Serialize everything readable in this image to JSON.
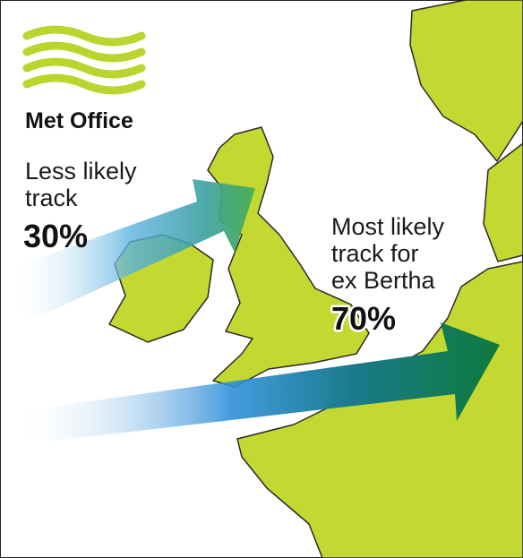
{
  "logo": {
    "name": "Met Office"
  },
  "tracks": [
    {
      "label_lines": [
        "Less likely",
        "track"
      ],
      "probability": "30%"
    },
    {
      "label_lines": [
        "Most likely",
        "track for",
        "ex Bertha"
      ],
      "probability": "70%"
    }
  ]
}
